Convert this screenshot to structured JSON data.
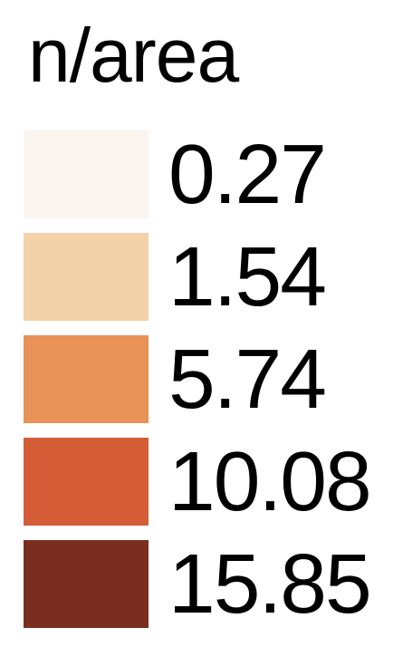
{
  "chart_data": {
    "type": "legend",
    "title": "n/area",
    "items": [
      {
        "label": "0.27",
        "value": 0.27,
        "color": "#faf5ef"
      },
      {
        "label": "1.54",
        "value": 1.54,
        "color": "#f3d2aa"
      },
      {
        "label": "5.74",
        "value": 5.74,
        "color": "#e89257"
      },
      {
        "label": "10.08",
        "value": 10.08,
        "color": "#d45d38"
      },
      {
        "label": "15.85",
        "value": 15.85,
        "color": "#7a2d20"
      }
    ]
  }
}
